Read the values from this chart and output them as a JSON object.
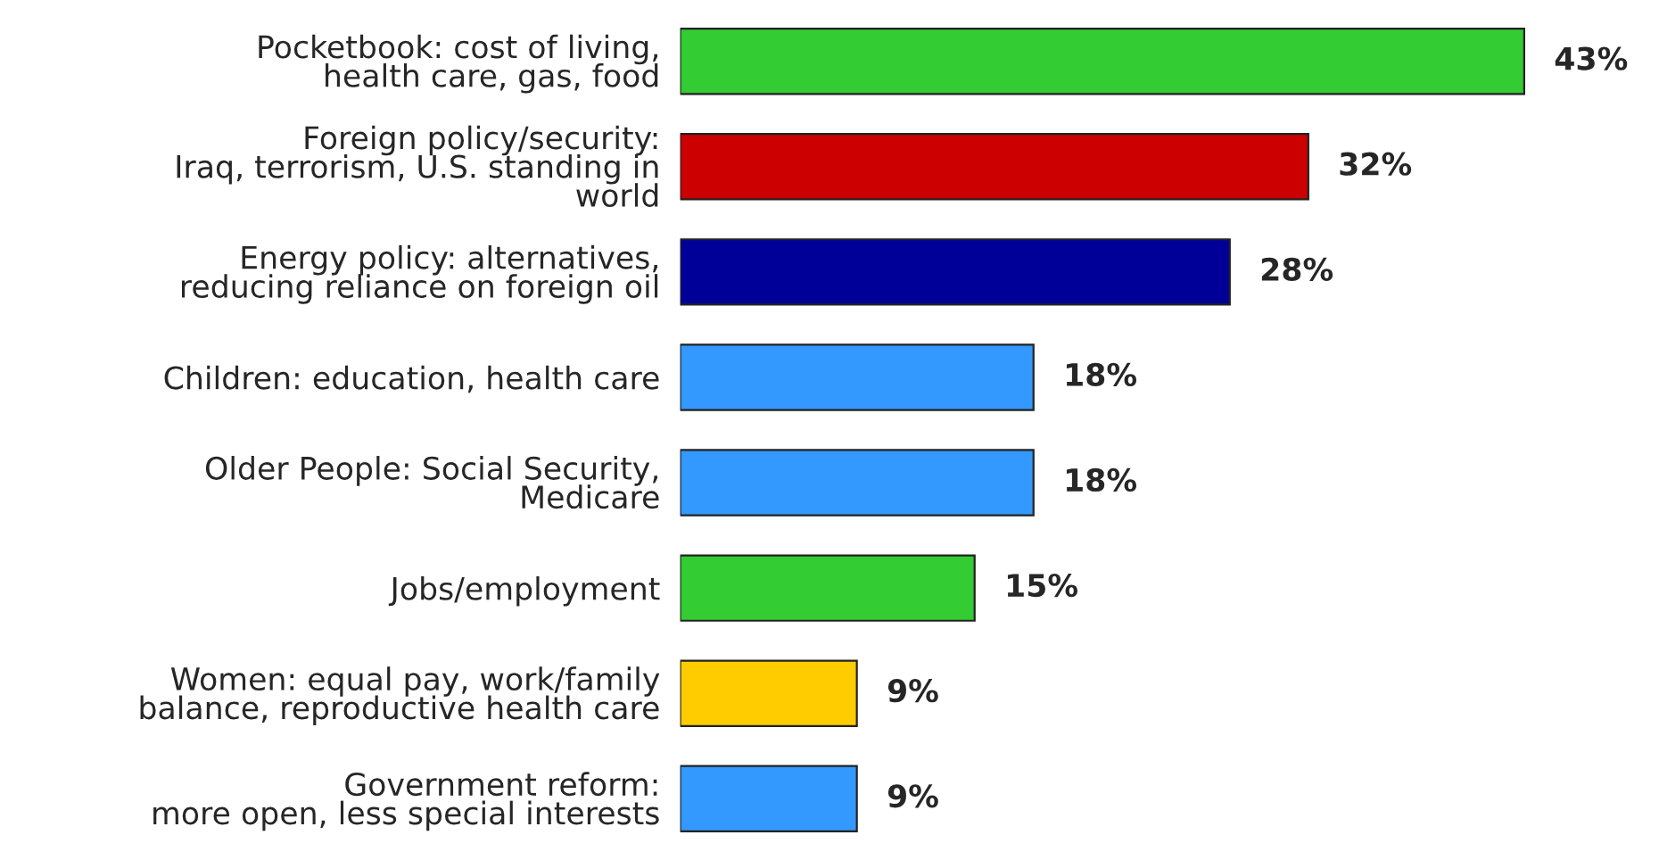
{
  "chart_data": {
    "type": "bar",
    "orientation": "horizontal",
    "data_labels": true,
    "grid": false,
    "legend": false,
    "categories": [
      "Pocketbook: cost of living,\nhealth care, gas, food",
      "Foreign policy/security:\nIraq, terrorism, U.S. standing in\nworld",
      "Energy policy: alternatives,\nreducing reliance on foreign oil",
      "Children: education, health care",
      "Older People: Social Security,\nMedicare",
      "Jobs/employment",
      "Women: equal pay, work/family\nbalance, reproductive health care",
      "Government reform:\nmore open, less special interests"
    ],
    "values": [
      43,
      32,
      28,
      18,
      18,
      15,
      9,
      9
    ],
    "value_labels": [
      "43%",
      "32%",
      "28%",
      "18%",
      "18%",
      "15%",
      "9%",
      "9%"
    ],
    "colors": [
      "#33cc33",
      "#cc0000",
      "#000099",
      "#3399ff",
      "#3399ff",
      "#33cc33",
      "#ffcc00",
      "#3399ff"
    ]
  }
}
